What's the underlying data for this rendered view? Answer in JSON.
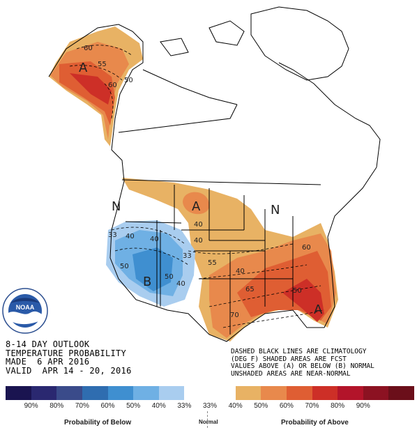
{
  "map": {
    "outlook_lines": [
      "8-14 DAY OUTLOOK",
      "TEMPERATURE PROBABILITY",
      "MADE  6 APR 2016",
      "VALID  APR 14 - 20, 2016"
    ],
    "note_lines": [
      "DASHED BLACK LINES ARE CLIMATOLOGY",
      "(DEG F) SHADED AREAS ARE FCST",
      "VALUES ABOVE (A) OR BELOW (B) NORMAL",
      "UNSHADED AREAS ARE NEAR-NORMAL"
    ],
    "region_labels": {
      "a_alaska": "A",
      "a_plains": "A",
      "a_southeast": "A",
      "b_west": "B",
      "n_northwest": "N",
      "n_northeast": "N"
    },
    "contour_labels": [
      "60",
      "55",
      "60",
      "50",
      "40",
      "33",
      "40",
      "40",
      "50",
      "50",
      "40",
      "33",
      "40",
      "55",
      "60",
      "40",
      "65",
      "50",
      "70"
    ]
  },
  "legend": {
    "colors": [
      "#1a1450",
      "#2a2870",
      "#3a4b8a",
      "#2f6db0",
      "#3f8fd0",
      "#6fb0e4",
      "#a9cdef",
      "#ffffff",
      "#ffffff",
      "#e8b264",
      "#e8894c",
      "#df5e33",
      "#cd2f27",
      "#b3142a",
      "#8c1222",
      "#6b0f1a"
    ],
    "ticks": [
      "90%",
      "80%",
      "70%",
      "60%",
      "50%",
      "40%",
      "33%",
      "33%",
      "40%",
      "50%",
      "60%",
      "70%",
      "80%",
      "90%"
    ],
    "caption_below": "Probability of Below",
    "caption_normal": "Normal",
    "caption_above": "Probability of Above"
  },
  "logo": {
    "text": "NOAA"
  }
}
